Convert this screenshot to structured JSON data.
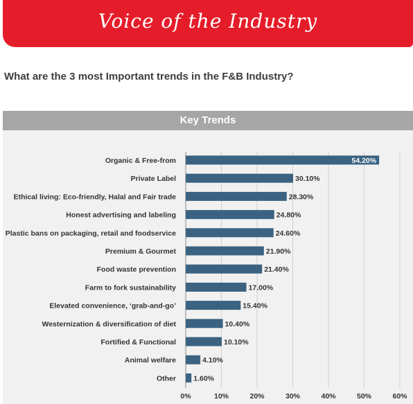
{
  "banner": {
    "title": "Voice of the Industry"
  },
  "question": "What are the 3 most Important trends in the F&B Industry?",
  "panel": {
    "title": "Key Trends"
  },
  "colors": {
    "banner": "#e51d2a",
    "bar": "#3b6381",
    "header": "#a6a6a6"
  },
  "chart_data": {
    "type": "bar",
    "orientation": "horizontal",
    "title": "Key Trends",
    "categories": [
      "Organic & Free-from",
      "Private Label",
      "Ethical living: Eco-friendly, Halal and Fair trade",
      "Honest advertising and labeling",
      "Plastic bans on packaging, retail and foodservice",
      "Premium & Gourmet",
      "Food waste prevention",
      "Farm to fork sustainability",
      "Elevated convenience, ‘grab-and-go’",
      "Westernization & diversification of diet",
      "Fortified & Functional",
      "Animal welfare",
      "Other"
    ],
    "values": [
      54.2,
      30.1,
      28.3,
      24.8,
      24.6,
      21.9,
      21.4,
      17.0,
      15.4,
      10.4,
      10.1,
      4.1,
      1.6
    ],
    "value_labels": [
      "54.20%",
      "30.10%",
      "28.30%",
      "24.80%",
      "24.60%",
      "21.90%",
      "21.40%",
      "17.00%",
      "15.40%",
      "10.40%",
      "10.10%",
      "4.10%",
      "1.60%"
    ],
    "x_ticks": [
      "0%",
      "10%",
      "20%",
      "30%",
      "40%",
      "50%",
      "60%"
    ],
    "xlim": [
      0,
      60
    ],
    "grid": true,
    "legend": "none"
  }
}
